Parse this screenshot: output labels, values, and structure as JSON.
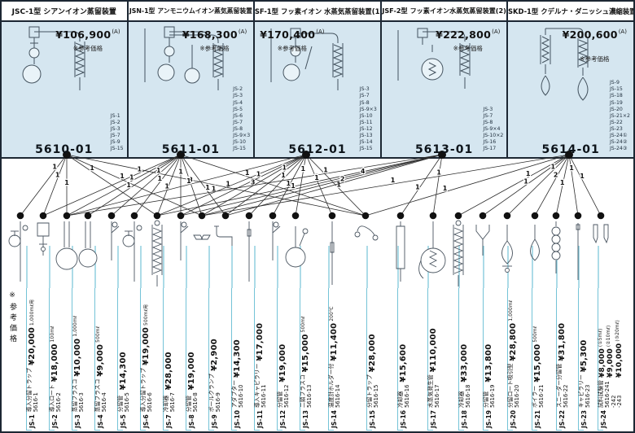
{
  "reference_note": "※参考価格",
  "panels": [
    {
      "model_type": "JSC-1型",
      "title": "シアンイオン蒸留装置",
      "price": "¥106,900",
      "price_grade": "(A)",
      "price_note": "※参考価格",
      "parts_used": [
        "JS-1",
        "JS-2",
        "JS-3",
        "JS-7",
        "JS-9",
        "JS-15"
      ],
      "model_no": "5610-01"
    },
    {
      "model_type": "JSN-1型",
      "title": "アンモニウムイオン蒸気蒸留装置",
      "price": "¥168,300",
      "price_grade": "(A)",
      "price_note": "※参考価格",
      "parts_used": [
        "JS-2",
        "JS-3",
        "JS-4",
        "JS-5",
        "JS-6",
        "JS-7",
        "JS-8",
        "JS-9×3",
        "JS-10",
        "JS-15"
      ],
      "model_no": "5611-01"
    },
    {
      "model_type": "JSF-1型",
      "title": "フッ素イオン 水蒸気蒸留装置(1)",
      "price": "¥170,400",
      "price_grade": "(A)",
      "price_note": "※参考価格",
      "parts_used": [
        "JS-3",
        "JS-7",
        "JS-8",
        "JS-9×3",
        "JS-10",
        "JS-11",
        "JS-12",
        "JS-13",
        "JS-14",
        "JS-15"
      ],
      "model_no": "5612-01"
    },
    {
      "model_type": "JSF-2型",
      "title": "フッ素イオン水蒸気蒸留装置(2)",
      "price": "¥222,800",
      "price_grade": "(A)",
      "price_note": "※参考価格",
      "parts_used": [
        "JS-3",
        "JS-7",
        "JS-8",
        "JS-9×4",
        "JS-10×2",
        "JS-16",
        "JS-17"
      ],
      "model_no": "5613-01"
    },
    {
      "model_type": "JSKD-1型",
      "title": "クデルナ・ダニッシュ濃縮装置",
      "price": "¥200,600",
      "price_grade": "(A)",
      "price_note": "※参考価格",
      "parts_used": [
        "JS-9",
        "JS-15",
        "JS-18",
        "JS-19",
        "JS-20",
        "JS-21×2",
        "JS-22",
        "JS-23",
        "JS-24①",
        "JS-24②",
        "JS-24③"
      ],
      "model_no": "5614-01"
    }
  ],
  "parts": [
    {
      "js": "JS-1",
      "name": "導入分留トラップ",
      "code": "5616-1",
      "price": "¥20,000",
      "note": "1,000mℓ用",
      "sketch": "trap"
    },
    {
      "js": "JS-2",
      "name": "導入ロート",
      "code": "5616-2",
      "price": "¥18,000",
      "note": "100mℓ",
      "sketch": "funnel"
    },
    {
      "js": "JS-3",
      "name": "蒸留フラスコ",
      "code": "5616-3",
      "price": "¥10,000",
      "note": "1,000mℓ",
      "sketch": "flask_l"
    },
    {
      "js": "JS-4",
      "name": "蒸留フラスコ",
      "code": "5616-4",
      "price": "¥9,000",
      "note": "500mℓ",
      "sketch": "flask_s"
    },
    {
      "js": "JS-5",
      "name": "分留管",
      "code": "5616-5",
      "price": "¥14,300",
      "note": "",
      "sketch": "sidearm"
    },
    {
      "js": "JS-6",
      "name": "導入分留トラップ",
      "code": "5616-6",
      "price": "¥19,000",
      "note": "500mℓ用",
      "sketch": "trap"
    },
    {
      "js": "JS-7",
      "name": "冷却器",
      "code": "5616-7",
      "price": "¥28,000",
      "note": "",
      "sketch": "coil"
    },
    {
      "js": "JS-8",
      "name": "分留管",
      "code": "5616-8",
      "price": "¥19,000",
      "note": "",
      "sketch": "sidearm"
    },
    {
      "js": "JS-9",
      "name": "ボールクランプ",
      "code": "5616-9",
      "price": "¥2,900",
      "note": "",
      "sketch": "clamp"
    },
    {
      "js": "JS-10",
      "name": "アダプター",
      "code": "5616-10",
      "price": "¥14,300",
      "note": "",
      "sketch": "elbow"
    },
    {
      "js": "JS-11",
      "name": "導入キャピラリー",
      "code": "5616-11",
      "price": "¥17,000",
      "note": "",
      "sketch": "capillary"
    },
    {
      "js": "JS-12",
      "name": "分留管",
      "code": "5616-12",
      "price": "¥19,000",
      "note": "",
      "sketch": "sidearm"
    },
    {
      "js": "JS-13",
      "name": "二頸フラスコ",
      "code": "5616-13",
      "price": "¥15,000",
      "note": "500mℓ",
      "sketch": "twinflask"
    },
    {
      "js": "JS-14",
      "name": "温度計ホルダー付",
      "code": "5616-14",
      "price": "¥11,400",
      "note": "200℃",
      "sketch": "thermometer"
    },
    {
      "js": "JS-15",
      "name": "分留トラップ",
      "code": "5616-15",
      "price": "¥28,000",
      "note": "",
      "sketch": "swan"
    },
    {
      "js": "JS-16",
      "name": "冷却器",
      "code": "5616-16",
      "price": "¥15,600",
      "note": "",
      "sketch": "jacket"
    },
    {
      "js": "JS-17",
      "name": "水蒸気発生管",
      "code": "5616-17",
      "price": "¥110,000",
      "note": "",
      "sketch": "steamgen"
    },
    {
      "js": "JS-18",
      "name": "冷却器",
      "code": "5616-18",
      "price": "¥33,000",
      "note": "",
      "sketch": "coil"
    },
    {
      "js": "JS-19",
      "name": "分留管",
      "code": "5616-19",
      "price": "¥13,800",
      "note": "",
      "sketch": "ytube"
    },
    {
      "js": "JS-20",
      "name": "分留ロート吸引型",
      "code": "5616-20",
      "price": "¥28,800",
      "note": "1,000mℓ",
      "sketch": "sepfunnel"
    },
    {
      "js": "JS-21",
      "name": "ボイラー",
      "code": "5616-21",
      "price": "¥15,000",
      "note": "500mℓ",
      "sketch": "pear"
    },
    {
      "js": "JS-22",
      "name": "スニーダー分留管",
      "code": "5616-22",
      "price": "¥31,800",
      "note": "",
      "sketch": "snyder"
    },
    {
      "js": "JS-23",
      "name": "キャピラリー",
      "code": "5616-23",
      "price": "¥5,300",
      "note": "",
      "sketch": "rod"
    },
    {
      "js": "JS-24",
      "name": "試料試験管",
      "codes": [
        "5616-241",
        "-242",
        "-243"
      ],
      "prices": [
        {
          "price": "¥8,000",
          "size": "(①5mℓ)"
        },
        {
          "price": "¥9,000",
          "size": "(②10mℓ)"
        },
        {
          "price": "¥10,000",
          "size": "(③20mℓ)"
        }
      ],
      "sketch": "tubes2"
    }
  ],
  "connections": [
    {
      "device": 0,
      "part": 1,
      "qty": 1
    },
    {
      "device": 0,
      "part": 2,
      "qty": 1
    },
    {
      "device": 0,
      "part": 3,
      "qty": 1
    },
    {
      "device": 0,
      "part": 7,
      "qty": 1
    },
    {
      "device": 0,
      "part": 9,
      "qty": 1
    },
    {
      "device": 0,
      "part": 15,
      "qty": 1
    },
    {
      "device": 1,
      "part": 2,
      "qty": 1
    },
    {
      "device": 1,
      "part": 3,
      "qty": 1
    },
    {
      "device": 1,
      "part": 4,
      "qty": 1
    },
    {
      "device": 1,
      "part": 5,
      "qty": 1
    },
    {
      "device": 1,
      "part": 6,
      "qty": 1
    },
    {
      "device": 1,
      "part": 7,
      "qty": 1
    },
    {
      "device": 1,
      "part": 8,
      "qty": 1
    },
    {
      "device": 1,
      "part": 9,
      "qty": 3
    },
    {
      "device": 1,
      "part": 10,
      "qty": 1
    },
    {
      "device": 1,
      "part": 15,
      "qty": 1
    },
    {
      "device": 2,
      "part": 3,
      "qty": 1
    },
    {
      "device": 2,
      "part": 7,
      "qty": 1
    },
    {
      "device": 2,
      "part": 8,
      "qty": 1
    },
    {
      "device": 2,
      "part": 9,
      "qty": 3
    },
    {
      "device": 2,
      "part": 10,
      "qty": 1
    },
    {
      "device": 2,
      "part": 11,
      "qty": 1
    },
    {
      "device": 2,
      "part": 12,
      "qty": 1
    },
    {
      "device": 2,
      "part": 13,
      "qty": 1
    },
    {
      "device": 2,
      "part": 14,
      "qty": 1
    },
    {
      "device": 2,
      "part": 15,
      "qty": 1
    },
    {
      "device": 3,
      "part": 3,
      "qty": 1
    },
    {
      "device": 3,
      "part": 7,
      "qty": 1
    },
    {
      "device": 3,
      "part": 8,
      "qty": 1
    },
    {
      "device": 3,
      "part": 9,
      "qty": 4
    },
    {
      "device": 3,
      "part": 10,
      "qty": 2
    },
    {
      "device": 3,
      "part": 16,
      "qty": 1
    },
    {
      "device": 3,
      "part": 17,
      "qty": 1
    },
    {
      "device": 4,
      "part": 9,
      "qty": 1
    },
    {
      "device": 4,
      "part": 15,
      "qty": 1
    },
    {
      "device": 4,
      "part": 18,
      "qty": 1
    },
    {
      "device": 4,
      "part": 19,
      "qty": 1
    },
    {
      "device": 4,
      "part": 20,
      "qty": 1
    },
    {
      "device": 4,
      "part": 21,
      "qty": 2
    },
    {
      "device": 4,
      "part": 22,
      "qty": 1
    },
    {
      "device": 4,
      "part": 23,
      "qty": 1
    },
    {
      "device": 4,
      "part": 24,
      "qty": 1
    }
  ]
}
